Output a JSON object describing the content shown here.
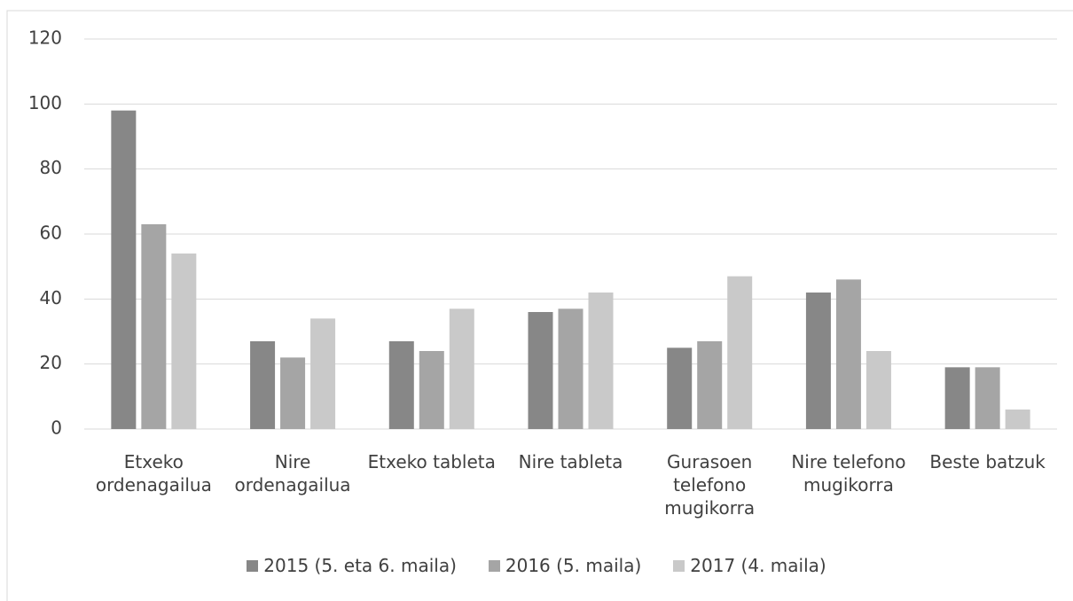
{
  "chart_data": {
    "type": "bar",
    "categories": [
      "Etxeko ordenagailua",
      "Nire ordenagailua",
      "Etxeko tableta",
      "Nire tableta",
      "Gurasoen telefono mugikorra",
      "Nire telefono mugikorra",
      "Beste batzuk"
    ],
    "series": [
      {
        "name": "2015 (5. eta 6. maila)",
        "color": "#878787",
        "values": [
          98,
          27,
          27,
          36,
          25,
          42,
          19
        ]
      },
      {
        "name": "2016 (5. maila)",
        "color": "#a5a5a5",
        "values": [
          63,
          22,
          24,
          37,
          27,
          46,
          19
        ]
      },
      {
        "name": "2017 (4. maila)",
        "color": "#c9c9c9",
        "values": [
          54,
          34,
          37,
          42,
          47,
          24,
          6
        ]
      }
    ],
    "ylim": [
      0,
      120
    ],
    "yticks": [
      0,
      20,
      40,
      60,
      80,
      100,
      120
    ],
    "grid": true,
    "legend": "bottom"
  }
}
